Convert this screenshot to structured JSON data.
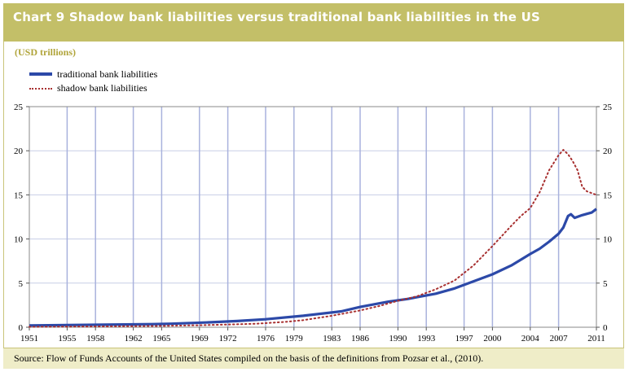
{
  "chart_data": {
    "type": "line",
    "title": "Chart 9 Shadow bank liabilities versus traditional bank liabilities in the US",
    "ylabel": "(USD trillions)",
    "source": "Source: Flow of Funds Accounts of the United States compiled on the basis of the definitions from Pozsar et al., (2010).",
    "xlim": [
      1951,
      2011
    ],
    "ylim": [
      0,
      25
    ],
    "x_ticks": [
      "1951",
      "1955",
      "1958",
      "1962",
      "1965",
      "1969",
      "1972",
      "1976",
      "1979",
      "1983",
      "1986",
      "1990",
      "1993",
      "1997",
      "2000",
      "2004",
      "2007",
      "2011"
    ],
    "y_ticks": [
      "0",
      "5",
      "10",
      "15",
      "20",
      "25"
    ],
    "legend_position": "top-left",
    "grid": true,
    "series": [
      {
        "name": "traditional bank liabilities",
        "color": "#2c49a8",
        "style": "solid",
        "x": [
          1951,
          1955,
          1960,
          1964,
          1966,
          1970,
          1973,
          1976,
          1980,
          1984,
          1986,
          1989,
          1991,
          1994,
          1996,
          1998,
          2000,
          2002,
          2004,
          2005,
          2006,
          2007,
          2007.5,
          2008,
          2008.3,
          2008.7,
          2009.5,
          2010.5,
          2011
        ],
        "y": [
          0.2,
          0.25,
          0.3,
          0.35,
          0.4,
          0.55,
          0.7,
          0.9,
          1.3,
          1.8,
          2.3,
          2.9,
          3.2,
          3.8,
          4.4,
          5.2,
          6.0,
          7.0,
          8.3,
          8.9,
          9.7,
          10.6,
          11.3,
          12.6,
          12.8,
          12.4,
          12.7,
          13.0,
          13.4
        ]
      },
      {
        "name": "shadow bank liabilities",
        "color": "#a83030",
        "style": "dotted",
        "x": [
          1951,
          1960,
          1965,
          1970,
          1975,
          1978,
          1980,
          1983,
          1986,
          1988,
          1990,
          1992,
          1994,
          1996,
          1998,
          2000,
          2002,
          2003,
          2004,
          2005,
          2006,
          2007,
          2007.5,
          2008,
          2008.5,
          2009,
          2009.5,
          2010,
          2011
        ],
        "y": [
          0.05,
          0.1,
          0.15,
          0.25,
          0.4,
          0.6,
          0.8,
          1.3,
          1.9,
          2.4,
          3.0,
          3.5,
          4.3,
          5.3,
          7.0,
          9.2,
          11.5,
          12.6,
          13.5,
          15.3,
          17.8,
          19.5,
          20.1,
          19.6,
          18.8,
          17.8,
          15.9,
          15.4,
          15.0
        ]
      }
    ]
  }
}
